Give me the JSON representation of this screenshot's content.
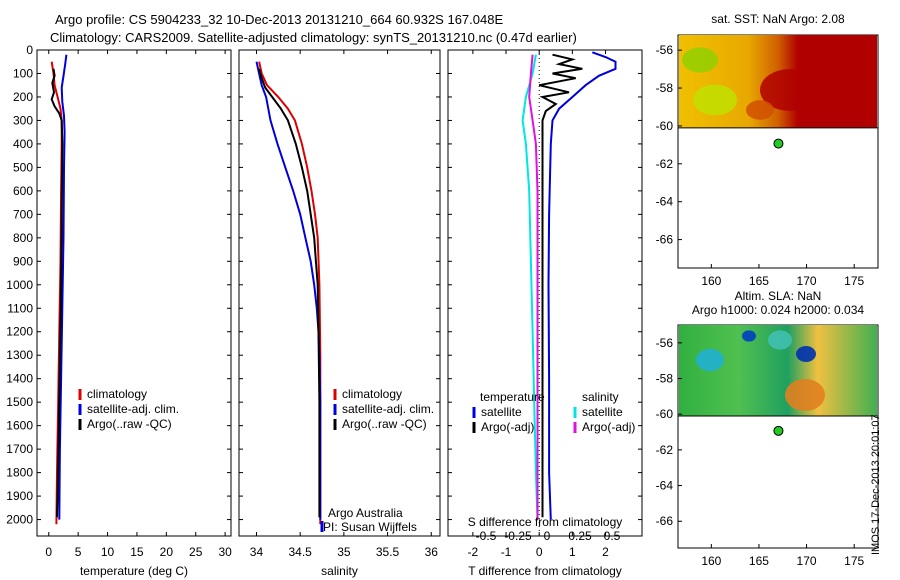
{
  "title_line1": "Argo profile: CS 5904233_32 10-Dec-2013 20131210_664 60.932S 167.048E",
  "title_line2": "Climatology: CARS2009. Satellite-adjusted climatology: synTS_20131210.nc (0.47d earlier)",
  "stamp": "IMOS 17-Dec-2013 20:01:07",
  "colors": {
    "climatology": "#dd0000",
    "satellite": "#0000dd",
    "argo": "#000000",
    "sal_satellite": "#00e5e5",
    "sal_argo": "#e010e0"
  },
  "chart_data": [
    {
      "type": "line",
      "xlabel": "temperature (deg C)",
      "ylabel": "",
      "xlim": [
        -2,
        31
      ],
      "ylim": [
        2070,
        0
      ],
      "xticks": [
        0,
        5,
        10,
        15,
        20,
        25,
        30
      ],
      "yticks": [
        0,
        100,
        200,
        300,
        400,
        500,
        600,
        700,
        800,
        900,
        1000,
        1100,
        1200,
        1300,
        1400,
        1500,
        1600,
        1700,
        1800,
        1900,
        2000
      ],
      "legend": [
        "climatology",
        "satellite-adj. clim.",
        "Argo(..raw -QC)"
      ],
      "series": [
        {
          "name": "climatology",
          "color": "#dd0000",
          "points": [
            [
              0.5,
              50
            ],
            [
              0.8,
              100
            ],
            [
              1.0,
              150
            ],
            [
              1.5,
              200
            ],
            [
              2.0,
              250
            ],
            [
              2.2,
              300
            ],
            [
              2.2,
              400
            ],
            [
              2.1,
              600
            ],
            [
              2.0,
              900
            ],
            [
              1.8,
              1200
            ],
            [
              1.6,
              1500
            ],
            [
              1.4,
              1800
            ],
            [
              1.3,
              2020
            ]
          ]
        },
        {
          "name": "satellite-adj. clim.",
          "color": "#0000dd",
          "points": [
            [
              3.0,
              20
            ],
            [
              2.8,
              60
            ],
            [
              2.5,
              110
            ],
            [
              2.2,
              160
            ],
            [
              2.3,
              220
            ],
            [
              2.6,
              280
            ],
            [
              2.7,
              350
            ],
            [
              2.6,
              500
            ],
            [
              2.5,
              800
            ],
            [
              2.3,
              1100
            ],
            [
              2.1,
              1400
            ],
            [
              1.9,
              1700
            ],
            [
              1.8,
              2000
            ]
          ]
        },
        {
          "name": "Argo(..raw -QC)",
          "color": "#000000",
          "points": [
            [
              0.8,
              80
            ],
            [
              1.0,
              110
            ],
            [
              0.6,
              140
            ],
            [
              0.9,
              180
            ],
            [
              0.5,
              210
            ],
            [
              1.0,
              240
            ],
            [
              1.8,
              270
            ],
            [
              2.2,
              300
            ],
            [
              2.3,
              400
            ],
            [
              2.2,
              700
            ],
            [
              2.1,
              1000
            ],
            [
              1.9,
              1300
            ],
            [
              1.7,
              1600
            ],
            [
              1.5,
              1900
            ],
            [
              1.4,
              1990
            ]
          ]
        }
      ]
    },
    {
      "type": "line",
      "xlabel": "salinity",
      "ylabel": "",
      "xlim": [
        33.8,
        36.1
      ],
      "ylim": [
        2070,
        0
      ],
      "xticks": [
        34,
        34.5,
        35,
        35.5,
        36
      ],
      "yticks": [
        0,
        100,
        200,
        300,
        400,
        500,
        600,
        700,
        800,
        900,
        1000,
        1100,
        1200,
        1300,
        1400,
        1500,
        1600,
        1700,
        1800,
        1900,
        2000
      ],
      "legend": [
        "climatology",
        "satellite-adj. clim.",
        "Argo(..raw -QC)"
      ],
      "annotations": [
        "Argo Australia",
        "PI: Susan Wijffels"
      ],
      "series": [
        {
          "name": "climatology",
          "color": "#dd0000",
          "points": [
            [
              34.03,
              50
            ],
            [
              34.06,
              100
            ],
            [
              34.12,
              150
            ],
            [
              34.25,
              200
            ],
            [
              34.36,
              250
            ],
            [
              34.44,
              300
            ],
            [
              34.52,
              400
            ],
            [
              34.58,
              500
            ],
            [
              34.63,
              600
            ],
            [
              34.67,
              700
            ],
            [
              34.7,
              800
            ],
            [
              34.72,
              1000
            ],
            [
              34.73,
              1300
            ],
            [
              34.73,
              1600
            ],
            [
              34.73,
              2020
            ]
          ]
        },
        {
          "name": "satellite-adj. clim.",
          "color": "#0000dd",
          "points": [
            [
              34.0,
              50
            ],
            [
              34.03,
              100
            ],
            [
              34.06,
              150
            ],
            [
              34.11,
              200
            ],
            [
              34.16,
              300
            ],
            [
              34.24,
              400
            ],
            [
              34.33,
              500
            ],
            [
              34.42,
              600
            ],
            [
              34.5,
              700
            ],
            [
              34.56,
              800
            ],
            [
              34.62,
              900
            ],
            [
              34.66,
              1000
            ],
            [
              34.69,
              1100
            ],
            [
              34.71,
              1200
            ],
            [
              34.72,
              1300
            ],
            [
              34.73,
              1500
            ],
            [
              34.73,
              1800
            ],
            [
              34.73,
              2000
            ]
          ]
        },
        {
          "name": "Argo(..raw -QC)",
          "color": "#000000",
          "points": [
            [
              34.03,
              80
            ],
            [
              34.06,
              120
            ],
            [
              34.1,
              160
            ],
            [
              34.18,
              200
            ],
            [
              34.28,
              250
            ],
            [
              34.36,
              300
            ],
            [
              34.45,
              400
            ],
            [
              34.52,
              500
            ],
            [
              34.58,
              600
            ],
            [
              34.62,
              700
            ],
            [
              34.66,
              800
            ],
            [
              34.68,
              900
            ],
            [
              34.7,
              1000
            ],
            [
              34.71,
              1200
            ],
            [
              34.72,
              1500
            ],
            [
              34.72,
              1800
            ],
            [
              34.72,
              1990
            ]
          ]
        }
      ]
    },
    {
      "type": "line",
      "xlabel": "T difference from climatology",
      "x2label": "S difference from climatology",
      "ylabel": "",
      "xlim": [
        -2.75,
        3.1
      ],
      "ylim": [
        2070,
        0
      ],
      "xticks": [
        -2,
        -1,
        0,
        1,
        2
      ],
      "x2ticks": [
        -0.5,
        -0.25,
        0,
        0.25,
        0.5
      ],
      "yticks": [
        0,
        100,
        200,
        300,
        400,
        500,
        600,
        700,
        800,
        900,
        1000,
        1100,
        1200,
        1300,
        1400,
        1500,
        1600,
        1700,
        1800,
        1900,
        2000
      ],
      "legend_temperature": "temperature",
      "legend_salinity": "salinity",
      "legend": [
        "satellite",
        "Argo(-adj)",
        "satellite",
        "Argo(-adj)"
      ],
      "series": [
        {
          "name": "satellite",
          "color": "#0000dd",
          "points": [
            [
              1.6,
              10
            ],
            [
              2.0,
              30
            ],
            [
              2.3,
              50
            ],
            [
              2.3,
              80
            ],
            [
              1.8,
              110
            ],
            [
              1.4,
              150
            ],
            [
              1.0,
              200
            ],
            [
              0.6,
              250
            ],
            [
              0.4,
              300
            ],
            [
              0.35,
              400
            ],
            [
              0.3,
              700
            ],
            [
              0.28,
              1000
            ],
            [
              0.3,
              1400
            ],
            [
              0.3,
              1800
            ],
            [
              0.35,
              2000
            ]
          ]
        },
        {
          "name": "Argo(-adj)",
          "color": "#000000",
          "points": [
            [
              0.4,
              20
            ],
            [
              1.0,
              40
            ],
            [
              0.6,
              60
            ],
            [
              1.3,
              80
            ],
            [
              0.4,
              100
            ],
            [
              1.1,
              120
            ],
            [
              0.0,
              150
            ],
            [
              0.9,
              180
            ],
            [
              0.1,
              200
            ],
            [
              0.5,
              230
            ],
            [
              0.2,
              260
            ],
            [
              0.1,
              300
            ],
            [
              0.1,
              400
            ],
            [
              0.1,
              700
            ],
            [
              0.1,
              1000
            ],
            [
              0.1,
              1400
            ],
            [
              0.1,
              1800
            ],
            [
              0.1,
              1990
            ]
          ]
        },
        {
          "name": "satellite",
          "color": "#00e5e5",
          "points": [
            [
              -0.1,
              20
            ],
            [
              -0.2,
              100
            ],
            [
              -0.4,
              200
            ],
            [
              -0.5,
              300
            ],
            [
              -0.4,
              400
            ],
            [
              -0.3,
              600
            ],
            [
              -0.25,
              900
            ],
            [
              -0.2,
              1200
            ],
            [
              -0.15,
              1500
            ],
            [
              -0.1,
              1800
            ],
            [
              -0.05,
              2000
            ]
          ]
        },
        {
          "name": "Argo(-adj)",
          "color": "#e010e0",
          "points": [
            [
              -0.2,
              20
            ],
            [
              -0.25,
              100
            ],
            [
              -0.3,
              200
            ],
            [
              -0.2,
              300
            ],
            [
              -0.1,
              400
            ],
            [
              -0.05,
              600
            ],
            [
              -0.05,
              900
            ],
            [
              -0.05,
              1300
            ],
            [
              -0.05,
              1700
            ],
            [
              -0.05,
              2000
            ]
          ]
        }
      ]
    },
    {
      "type": "heatmap",
      "title": "sat. SST: NaN Argo: 2.08",
      "xlim": [
        156.5,
        177.5
      ],
      "ylim": [
        -67.5,
        -55.2
      ],
      "xticks": [
        160,
        165,
        170,
        175
      ],
      "yticks": [
        -56,
        -58,
        -60,
        -62,
        -64,
        -66
      ],
      "data_extent": {
        "lat_top": -55.2,
        "lat_bottom": -60.1
      },
      "argo_position": [
        167.048,
        -60.932
      ]
    },
    {
      "type": "heatmap",
      "title": "Altim. SLA: NaN",
      "subtitle": "Argo h1000: 0.024 h2000: 0.034",
      "xlim": [
        156.5,
        177.5
      ],
      "ylim": [
        -67.5,
        -55.0
      ],
      "xticks": [
        160,
        165,
        170,
        175
      ],
      "yticks": [
        -56,
        -58,
        -60,
        -62,
        -64,
        -66
      ],
      "data_extent": {
        "lat_top": -55.0,
        "lat_bottom": -60.1
      },
      "argo_position": [
        167.048,
        -60.932
      ]
    }
  ]
}
